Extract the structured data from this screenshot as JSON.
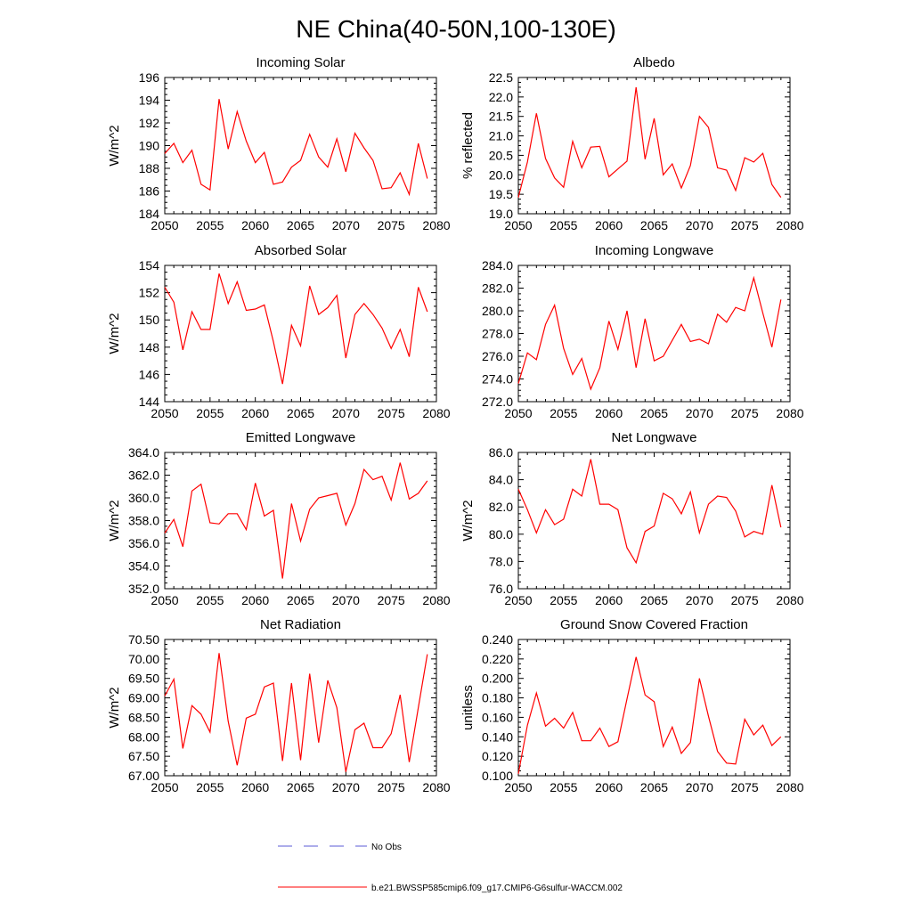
{
  "figure_title": "NE China(40-50N,100-130E)",
  "legend": {
    "no_obs_label": "No Obs",
    "no_obs_color": "#5b5bd6",
    "model_label": "b.e21.BWSSP585cmip6.f09_g17.CMIP6-G6sulfur-WACCM.002",
    "model_color": "#ff0000"
  },
  "chart_data": [
    {
      "type": "line",
      "title": "Incoming Solar",
      "ylabel": "W/m^2",
      "xlim": [
        2050,
        2080
      ],
      "ylim": [
        184,
        196
      ],
      "yticks": [
        "184",
        "186",
        "188",
        "190",
        "192",
        "194",
        "196"
      ],
      "yticks_values": [
        184,
        186,
        188,
        190,
        192,
        194,
        196
      ],
      "xticks": [
        2050,
        2055,
        2060,
        2065,
        2070,
        2075,
        2080
      ],
      "x": [
        2050,
        2051,
        2052,
        2053,
        2054,
        2055,
        2056,
        2057,
        2058,
        2059,
        2060,
        2061,
        2062,
        2063,
        2064,
        2065,
        2066,
        2067,
        2068,
        2069,
        2070,
        2071,
        2072,
        2073,
        2074,
        2075,
        2076,
        2077,
        2078,
        2079
      ],
      "series": [
        {
          "values": [
            189.3,
            190.2,
            188.5,
            189.6,
            186.6,
            186.1,
            194.1,
            189.7,
            193.0,
            190.4,
            188.5,
            189.4,
            186.6,
            186.8,
            188.1,
            188.7,
            191.0,
            189.0,
            188.1,
            190.6,
            187.7,
            191.1,
            189.8,
            188.7,
            186.2,
            186.3,
            187.6,
            185.7,
            190.2,
            187.1
          ],
          "color": "#ff0000"
        }
      ]
    },
    {
      "type": "line",
      "title": "Albedo",
      "ylabel": "% reflected",
      "xlim": [
        2050,
        2080
      ],
      "ylim": [
        19.0,
        22.5
      ],
      "yticks": [
        "19.0",
        "19.5",
        "20.0",
        "20.5",
        "21.0",
        "21.5",
        "22.0",
        "22.5"
      ],
      "yticks_values": [
        19.0,
        19.5,
        20.0,
        20.5,
        21.0,
        21.5,
        22.0,
        22.5
      ],
      "xticks": [
        2050,
        2055,
        2060,
        2065,
        2070,
        2075,
        2080
      ],
      "x": [
        2050,
        2051,
        2052,
        2053,
        2054,
        2055,
        2056,
        2057,
        2058,
        2059,
        2060,
        2061,
        2062,
        2063,
        2064,
        2065,
        2066,
        2067,
        2068,
        2069,
        2070,
        2071,
        2072,
        2073,
        2074,
        2075,
        2076,
        2077,
        2078,
        2079
      ],
      "series": [
        {
          "values": [
            19.42,
            20.33,
            21.58,
            20.42,
            19.92,
            19.68,
            20.86,
            20.18,
            20.71,
            20.73,
            19.95,
            20.15,
            20.35,
            22.25,
            20.4,
            21.45,
            20.0,
            20.28,
            19.66,
            20.24,
            21.5,
            21.22,
            20.18,
            20.12,
            19.6,
            20.44,
            20.33,
            20.55,
            19.75,
            19.42
          ],
          "color": "#ff0000"
        }
      ]
    },
    {
      "type": "line",
      "title": "Absorbed Solar",
      "ylabel": "W/m^2",
      "xlim": [
        2050,
        2080
      ],
      "ylim": [
        144,
        154
      ],
      "yticks": [
        "144",
        "146",
        "148",
        "150",
        "152",
        "154"
      ],
      "yticks_values": [
        144,
        146,
        148,
        150,
        152,
        154
      ],
      "xticks": [
        2050,
        2055,
        2060,
        2065,
        2070,
        2075,
        2080
      ],
      "x": [
        2050,
        2051,
        2052,
        2053,
        2054,
        2055,
        2056,
        2057,
        2058,
        2059,
        2060,
        2061,
        2062,
        2063,
        2064,
        2065,
        2066,
        2067,
        2068,
        2069,
        2070,
        2071,
        2072,
        2073,
        2074,
        2075,
        2076,
        2077,
        2078,
        2079
      ],
      "series": [
        {
          "values": [
            152.4,
            151.3,
            147.8,
            150.6,
            149.3,
            149.3,
            153.4,
            151.2,
            152.8,
            150.7,
            150.8,
            151.1,
            148.4,
            145.3,
            149.6,
            148.1,
            152.5,
            150.4,
            150.9,
            151.8,
            147.2,
            150.4,
            151.2,
            150.4,
            149.4,
            147.9,
            149.3,
            147.3,
            152.4,
            150.6
          ],
          "color": "#ff0000"
        }
      ]
    },
    {
      "type": "line",
      "title": "Incoming Longwave",
      "ylabel": "",
      "xlim": [
        2050,
        2080
      ],
      "ylim": [
        272.0,
        284.0
      ],
      "yticks": [
        "272.0",
        "274.0",
        "276.0",
        "278.0",
        "280.0",
        "282.0",
        "284.0"
      ],
      "yticks_values": [
        272,
        274,
        276,
        278,
        280,
        282,
        284
      ],
      "xticks": [
        2050,
        2055,
        2060,
        2065,
        2070,
        2075,
        2080
      ],
      "x": [
        2050,
        2051,
        2052,
        2053,
        2054,
        2055,
        2056,
        2057,
        2058,
        2059,
        2060,
        2061,
        2062,
        2063,
        2064,
        2065,
        2066,
        2067,
        2068,
        2069,
        2070,
        2071,
        2072,
        2073,
        2074,
        2075,
        2076,
        2077,
        2078,
        2079
      ],
      "series": [
        {
          "values": [
            273.6,
            276.3,
            275.7,
            278.8,
            280.5,
            276.7,
            274.4,
            275.8,
            273.1,
            275.0,
            279.1,
            276.6,
            280.0,
            275.0,
            279.3,
            275.6,
            276.0,
            277.4,
            278.8,
            277.3,
            277.5,
            277.1,
            279.7,
            279.0,
            280.3,
            280.0,
            282.9,
            279.8,
            276.8,
            281.0
          ],
          "color": "#ff0000"
        }
      ]
    },
    {
      "type": "line",
      "title": "Emitted Longwave",
      "ylabel": "W/m^2",
      "xlim": [
        2050,
        2080
      ],
      "ylim": [
        352.0,
        364.0
      ],
      "yticks": [
        "352.0",
        "354.0",
        "356.0",
        "358.0",
        "360.0",
        "362.0",
        "364.0"
      ],
      "yticks_values": [
        352,
        354,
        356,
        358,
        360,
        362,
        364
      ],
      "xticks": [
        2050,
        2055,
        2060,
        2065,
        2070,
        2075,
        2080
      ],
      "x": [
        2050,
        2051,
        2052,
        2053,
        2054,
        2055,
        2056,
        2057,
        2058,
        2059,
        2060,
        2061,
        2062,
        2063,
        2064,
        2065,
        2066,
        2067,
        2068,
        2069,
        2070,
        2071,
        2072,
        2073,
        2074,
        2075,
        2076,
        2077,
        2078,
        2079
      ],
      "series": [
        {
          "values": [
            356.9,
            358.1,
            355.7,
            360.6,
            361.2,
            357.8,
            357.7,
            358.6,
            358.6,
            357.2,
            361.3,
            358.4,
            358.9,
            352.9,
            359.5,
            356.2,
            359.0,
            360.0,
            360.2,
            360.4,
            357.6,
            359.5,
            362.5,
            361.6,
            361.9,
            359.8,
            363.1,
            359.9,
            360.4,
            361.5
          ],
          "color": "#ff0000"
        }
      ]
    },
    {
      "type": "line",
      "title": "Net Longwave",
      "ylabel": "W/m^2",
      "xlim": [
        2050,
        2080
      ],
      "ylim": [
        76.0,
        86.0
      ],
      "yticks": [
        "76.0",
        "78.0",
        "80.0",
        "82.0",
        "84.0",
        "86.0"
      ],
      "yticks_values": [
        76,
        78,
        80,
        82,
        84,
        86
      ],
      "xticks": [
        2050,
        2055,
        2060,
        2065,
        2070,
        2075,
        2080
      ],
      "x": [
        2050,
        2051,
        2052,
        2053,
        2054,
        2055,
        2056,
        2057,
        2058,
        2059,
        2060,
        2061,
        2062,
        2063,
        2064,
        2065,
        2066,
        2067,
        2068,
        2069,
        2070,
        2071,
        2072,
        2073,
        2074,
        2075,
        2076,
        2077,
        2078,
        2079
      ],
      "series": [
        {
          "values": [
            83.3,
            81.8,
            80.1,
            81.8,
            80.7,
            81.1,
            83.3,
            82.8,
            85.5,
            82.2,
            82.2,
            81.8,
            79.0,
            77.9,
            80.2,
            80.6,
            83.0,
            82.6,
            81.5,
            83.1,
            80.1,
            82.2,
            82.8,
            82.7,
            81.7,
            79.8,
            80.2,
            80.0,
            83.6,
            80.5
          ],
          "color": "#ff0000"
        }
      ]
    },
    {
      "type": "line",
      "title": "Net Radiation",
      "ylabel": "W/m^2",
      "xlim": [
        2050,
        2080
      ],
      "ylim": [
        67.0,
        70.5
      ],
      "yticks": [
        "67.00",
        "67.50",
        "68.00",
        "68.50",
        "69.00",
        "69.50",
        "70.00",
        "70.50"
      ],
      "yticks_values": [
        67.0,
        67.5,
        68.0,
        68.5,
        69.0,
        69.5,
        70.0,
        70.5
      ],
      "xticks": [
        2050,
        2055,
        2060,
        2065,
        2070,
        2075,
        2080
      ],
      "x": [
        2050,
        2051,
        2052,
        2053,
        2054,
        2055,
        2056,
        2057,
        2058,
        2059,
        2060,
        2061,
        2062,
        2063,
        2064,
        2065,
        2066,
        2067,
        2068,
        2069,
        2070,
        2071,
        2072,
        2073,
        2074,
        2075,
        2076,
        2077,
        2078,
        2079
      ],
      "series": [
        {
          "values": [
            69.05,
            69.48,
            67.7,
            68.8,
            68.58,
            68.12,
            70.15,
            68.4,
            67.27,
            68.48,
            68.58,
            69.28,
            69.38,
            67.38,
            69.38,
            67.4,
            69.62,
            67.85,
            69.45,
            68.75,
            67.1,
            68.18,
            68.35,
            67.72,
            67.72,
            68.08,
            69.08,
            67.35,
            68.75,
            70.12
          ],
          "color": "#ff0000"
        }
      ]
    },
    {
      "type": "line",
      "title": "Ground Snow Covered Fraction",
      "ylabel": "unitless",
      "xlim": [
        2050,
        2080
      ],
      "ylim": [
        0.1,
        0.24
      ],
      "yticks": [
        "0.100",
        "0.120",
        "0.140",
        "0.160",
        "0.180",
        "0.200",
        "0.220",
        "0.240"
      ],
      "yticks_values": [
        0.1,
        0.12,
        0.14,
        0.16,
        0.18,
        0.2,
        0.22,
        0.24
      ],
      "xticks": [
        2050,
        2055,
        2060,
        2065,
        2070,
        2075,
        2080
      ],
      "x": [
        2050,
        2051,
        2052,
        2053,
        2054,
        2055,
        2056,
        2057,
        2058,
        2059,
        2060,
        2061,
        2062,
        2063,
        2064,
        2065,
        2066,
        2067,
        2068,
        2069,
        2070,
        2071,
        2072,
        2073,
        2074,
        2075,
        2076,
        2077,
        2078,
        2079
      ],
      "series": [
        {
          "values": [
            0.102,
            0.152,
            0.185,
            0.151,
            0.159,
            0.149,
            0.165,
            0.136,
            0.136,
            0.149,
            0.13,
            0.135,
            0.179,
            0.222,
            0.183,
            0.176,
            0.13,
            0.15,
            0.123,
            0.134,
            0.2,
            0.161,
            0.125,
            0.113,
            0.112,
            0.158,
            0.142,
            0.152,
            0.131,
            0.14
          ],
          "color": "#ff0000"
        }
      ]
    }
  ]
}
